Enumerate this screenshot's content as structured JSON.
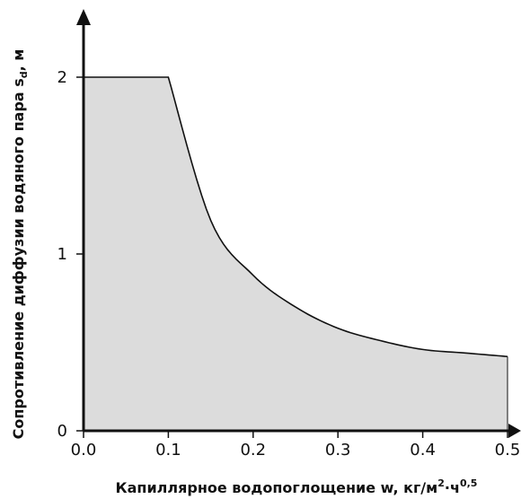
{
  "chart_data": {
    "type": "area",
    "title": "",
    "xlabel": {
      "prefix": "Капиллярное водопоглощение w, кг/м",
      "sup1": "2",
      "mid": "·ч",
      "sup2": "0,5"
    },
    "ylabel": {
      "prefix": "Сопротивление диффузии водяного пара s",
      "sub": "d",
      "suffix": ", м"
    },
    "xlim": [
      0,
      0.5
    ],
    "ylim": [
      0,
      2.4
    ],
    "x_ticks": [
      "0.0",
      "0.1",
      "0.2",
      "0.3",
      "0.4",
      "0.5"
    ],
    "y_ticks": [
      "0",
      "1",
      "2"
    ],
    "series": [
      {
        "x": [
          0,
          0.1,
          0.15,
          0.2,
          0.25,
          0.3,
          0.35,
          0.4,
          0.45,
          0.5
        ],
        "y": [
          2,
          2,
          1.19,
          0.88,
          0.7,
          0.58,
          0.51,
          0.46,
          0.44,
          0.42
        ]
      }
    ],
    "fill_color": "#dcdcdc",
    "line_color": "#111111",
    "grid": false
  }
}
